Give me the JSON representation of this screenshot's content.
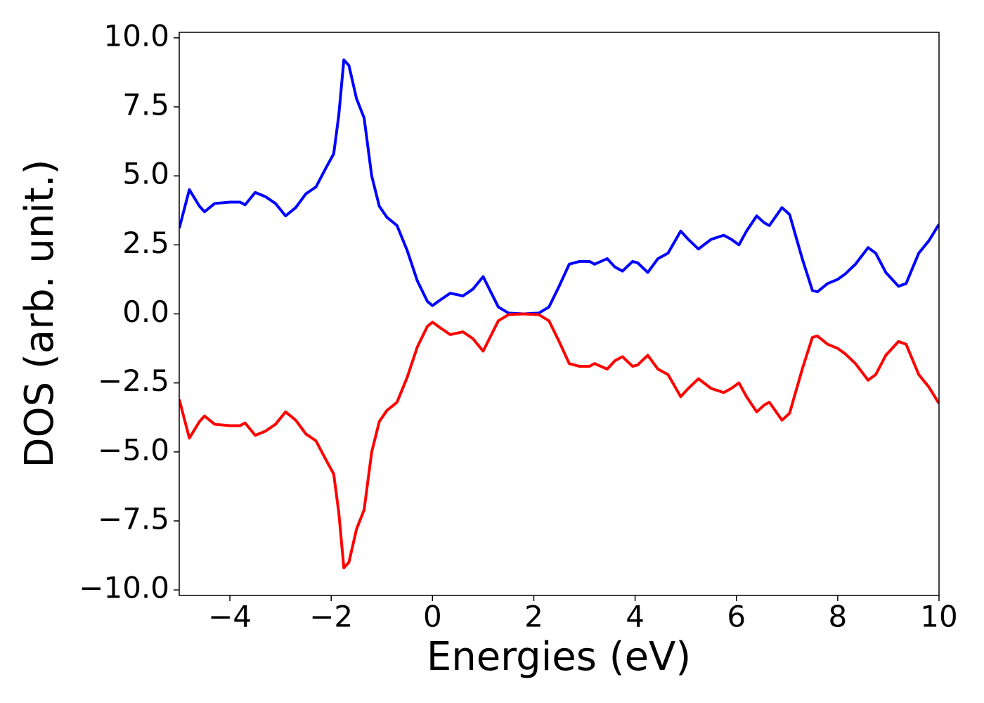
{
  "chart_data": {
    "type": "line",
    "xlabel": "Energies (eV)",
    "ylabel": "DOS (arb. unit.)",
    "x": [
      -5,
      -4.8,
      -4.6,
      -4.5,
      -4.3,
      -4.0,
      -3.8,
      -3.7,
      -3.5,
      -3.3,
      -3.1,
      -2.9,
      -2.7,
      -2.5,
      -2.3,
      -2.1,
      -1.95,
      -1.85,
      -1.75,
      -1.65,
      -1.5,
      -1.35,
      -1.2,
      -1.05,
      -0.9,
      -0.7,
      -0.5,
      -0.3,
      -0.1,
      0,
      0.15,
      0.35,
      0.6,
      0.8,
      1.0,
      1.15,
      1.3,
      1.5,
      1.8,
      2.1,
      2.3,
      2.5,
      2.7,
      2.9,
      3.1,
      3.2,
      3.45,
      3.6,
      3.75,
      3.95,
      4.05,
      4.25,
      4.45,
      4.65,
      4.9,
      5.05,
      5.25,
      5.5,
      5.75,
      5.9,
      6.05,
      6.2,
      6.4,
      6.55,
      6.65,
      6.9,
      7.05,
      7.3,
      7.5,
      7.6,
      7.8,
      8.0,
      8.15,
      8.35,
      8.6,
      8.75,
      8.95,
      9.2,
      9.35,
      9.6,
      9.8,
      10
    ],
    "series": [
      {
        "color": "#0000ff",
        "values": [
          3.1,
          4.5,
          3.9,
          3.7,
          4.0,
          4.05,
          4.05,
          3.95,
          4.4,
          4.25,
          4.0,
          3.55,
          3.85,
          4.35,
          4.6,
          5.3,
          5.8,
          7.2,
          9.2,
          9.0,
          7.8,
          7.1,
          5.0,
          3.9,
          3.5,
          3.2,
          2.3,
          1.2,
          0.45,
          0.3,
          0.5,
          0.75,
          0.65,
          0.9,
          1.35,
          0.8,
          0.25,
          0.03,
          0.0,
          0.03,
          0.25,
          1.0,
          1.8,
          1.9,
          1.9,
          1.8,
          2.0,
          1.7,
          1.55,
          1.9,
          1.85,
          1.5,
          2.0,
          2.2,
          3.0,
          2.7,
          2.35,
          2.7,
          2.85,
          2.7,
          2.5,
          3.0,
          3.55,
          3.3,
          3.2,
          3.85,
          3.6,
          2.0,
          0.85,
          0.8,
          1.1,
          1.25,
          1.45,
          1.8,
          2.4,
          2.2,
          1.5,
          1.0,
          1.1,
          2.2,
          2.65,
          3.25
        ]
      },
      {
        "color": "#ff0000",
        "values": [
          -3.1,
          -4.5,
          -3.9,
          -3.7,
          -4.0,
          -4.05,
          -4.05,
          -3.95,
          -4.4,
          -4.25,
          -4.0,
          -3.55,
          -3.85,
          -4.35,
          -4.6,
          -5.3,
          -5.8,
          -7.2,
          -9.2,
          -9.0,
          -7.8,
          -7.1,
          -5.0,
          -3.9,
          -3.5,
          -3.2,
          -2.3,
          -1.2,
          -0.45,
          -0.3,
          -0.5,
          -0.75,
          -0.65,
          -0.9,
          -1.35,
          -0.8,
          -0.25,
          -0.03,
          0.0,
          -0.03,
          -0.25,
          -1.0,
          -1.8,
          -1.9,
          -1.9,
          -1.8,
          -2.0,
          -1.7,
          -1.55,
          -1.9,
          -1.85,
          -1.5,
          -2.0,
          -2.2,
          -3.0,
          -2.7,
          -2.35,
          -2.7,
          -2.85,
          -2.7,
          -2.5,
          -3.0,
          -3.55,
          -3.3,
          -3.2,
          -3.85,
          -3.6,
          -2.0,
          -0.85,
          -0.8,
          -1.1,
          -1.25,
          -1.45,
          -1.8,
          -2.4,
          -2.2,
          -1.5,
          -1.0,
          -1.1,
          -2.2,
          -2.65,
          -3.25
        ]
      }
    ],
    "xlim": [
      -5,
      10
    ],
    "ylim": [
      -10.2,
      10.2
    ],
    "xticks": [
      {
        "value": -4,
        "label": "−4"
      },
      {
        "value": -2,
        "label": "−2"
      },
      0,
      2,
      4,
      6,
      8,
      10
    ],
    "yticks": [
      {
        "value": -10,
        "label": "−10.0"
      },
      {
        "value": -7.5,
        "label": "−7.5"
      },
      {
        "value": -5,
        "label": "−5.0"
      },
      {
        "value": -2.5,
        "label": "−2.5"
      },
      {
        "value": 0,
        "label": "0.0"
      },
      2.5,
      {
        "value": 5,
        "label": "5.0"
      },
      7.5,
      {
        "value": 10,
        "label": "10.0"
      }
    ],
    "grid": false
  }
}
